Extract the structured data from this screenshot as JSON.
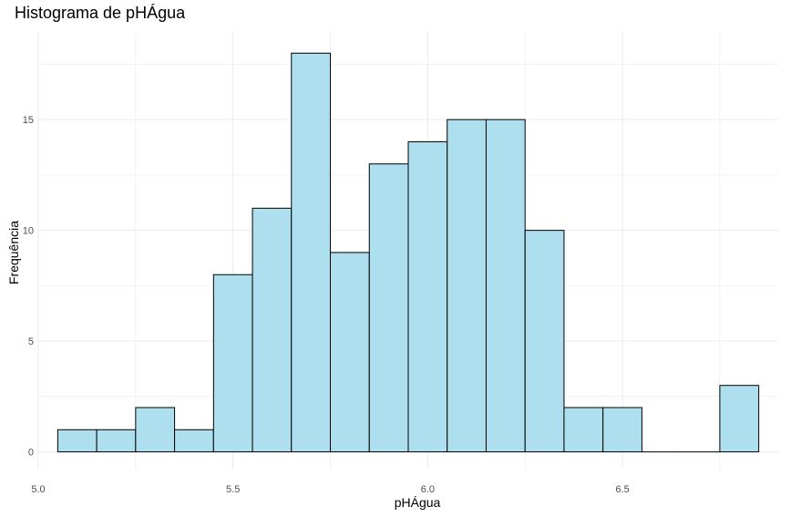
{
  "chart_data": {
    "type": "bar",
    "title": "Histograma de pHÁgua",
    "xlabel": "pHÁgua",
    "ylabel": "Frequência",
    "bin_width": 0.1,
    "bins": [
      {
        "x0": 5.05,
        "x1": 5.15,
        "count": 1
      },
      {
        "x0": 5.15,
        "x1": 5.25,
        "count": 1
      },
      {
        "x0": 5.25,
        "x1": 5.35,
        "count": 2
      },
      {
        "x0": 5.35,
        "x1": 5.45,
        "count": 1
      },
      {
        "x0": 5.45,
        "x1": 5.55,
        "count": 8
      },
      {
        "x0": 5.55,
        "x1": 5.65,
        "count": 11
      },
      {
        "x0": 5.65,
        "x1": 5.75,
        "count": 18
      },
      {
        "x0": 5.75,
        "x1": 5.85,
        "count": 9
      },
      {
        "x0": 5.85,
        "x1": 5.95,
        "count": 13
      },
      {
        "x0": 5.95,
        "x1": 6.05,
        "count": 14
      },
      {
        "x0": 6.05,
        "x1": 6.15,
        "count": 15
      },
      {
        "x0": 6.15,
        "x1": 6.25,
        "count": 15
      },
      {
        "x0": 6.25,
        "x1": 6.35,
        "count": 10
      },
      {
        "x0": 6.35,
        "x1": 6.45,
        "count": 2
      },
      {
        "x0": 6.45,
        "x1": 6.55,
        "count": 2
      },
      {
        "x0": 6.55,
        "x1": 6.65,
        "count": 0
      },
      {
        "x0": 6.65,
        "x1": 6.75,
        "count": 0
      },
      {
        "x0": 6.75,
        "x1": 6.85,
        "count": 3
      }
    ],
    "xlim": [
      5.0,
      6.9
    ],
    "ylim": [
      -0.8,
      19.0
    ],
    "x_ticks": [
      {
        "value": 5.0,
        "label": "5.0"
      },
      {
        "value": 5.5,
        "label": "5.5"
      },
      {
        "value": 6.0,
        "label": "6.0"
      },
      {
        "value": 6.5,
        "label": "6.5"
      }
    ],
    "y_ticks": [
      {
        "value": 0,
        "label": "0"
      },
      {
        "value": 5,
        "label": "5"
      },
      {
        "value": 10,
        "label": "10"
      },
      {
        "value": 15,
        "label": "15"
      }
    ],
    "grid": true,
    "bar_fill": "#addfef",
    "bar_stroke": "#000000",
    "grid_color": "#ebebeb",
    "legend": "none"
  }
}
